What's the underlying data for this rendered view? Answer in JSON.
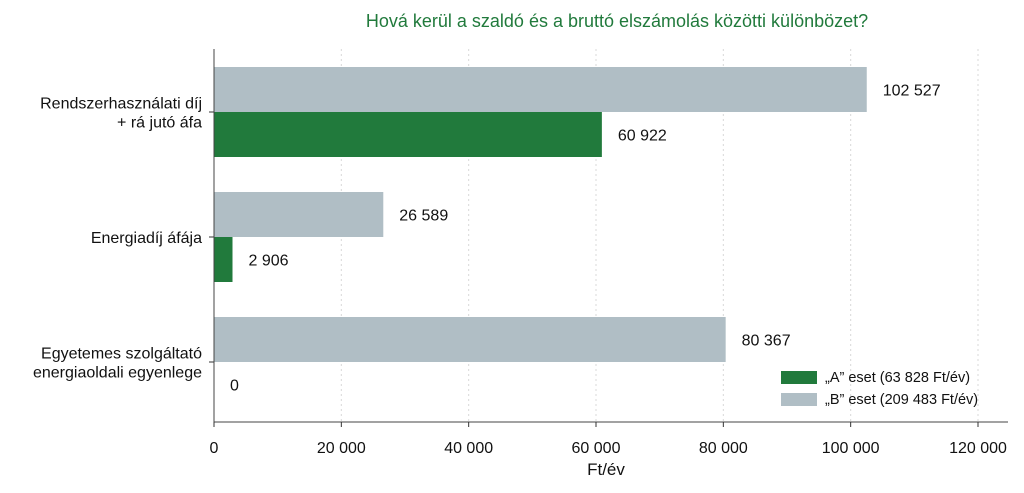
{
  "chart_data": {
    "type": "bar",
    "orientation": "horizontal",
    "title": "Hová kerül a szaldó és a bruttó elszámolás közötti különbözet?",
    "xlabel": "Ft/év",
    "ylabel": "",
    "xlim": [
      0,
      120000
    ],
    "xticks": [
      0,
      20000,
      40000,
      60000,
      80000,
      100000,
      120000
    ],
    "xtick_labels": [
      "0",
      "20 000",
      "40 000",
      "60 000",
      "80 000",
      "100 000",
      "120 000"
    ],
    "grid": "vertical dotted",
    "legend_position": "bottom-right",
    "categories": [
      [
        "Rendszerhasználati díj",
        "+ rá jutó áfa"
      ],
      [
        "Energiadíj áfája"
      ],
      [
        "Egyetemes szolgáltató",
        "energiaoldali egyenlege"
      ]
    ],
    "series": [
      {
        "name": "„B” eset (209 483 Ft/év)",
        "color": "#b0bec5",
        "values": [
          102527,
          26589,
          80367
        ],
        "labels": [
          "102 527",
          "26 589",
          "80 367"
        ]
      },
      {
        "name": "„A” eset (63 828 Ft/év)",
        "color": "#217a3c",
        "values": [
          60922,
          2906,
          0
        ],
        "labels": [
          "60 922",
          "2 906",
          "0"
        ]
      }
    ],
    "legend_order": [
      1,
      0
    ]
  }
}
